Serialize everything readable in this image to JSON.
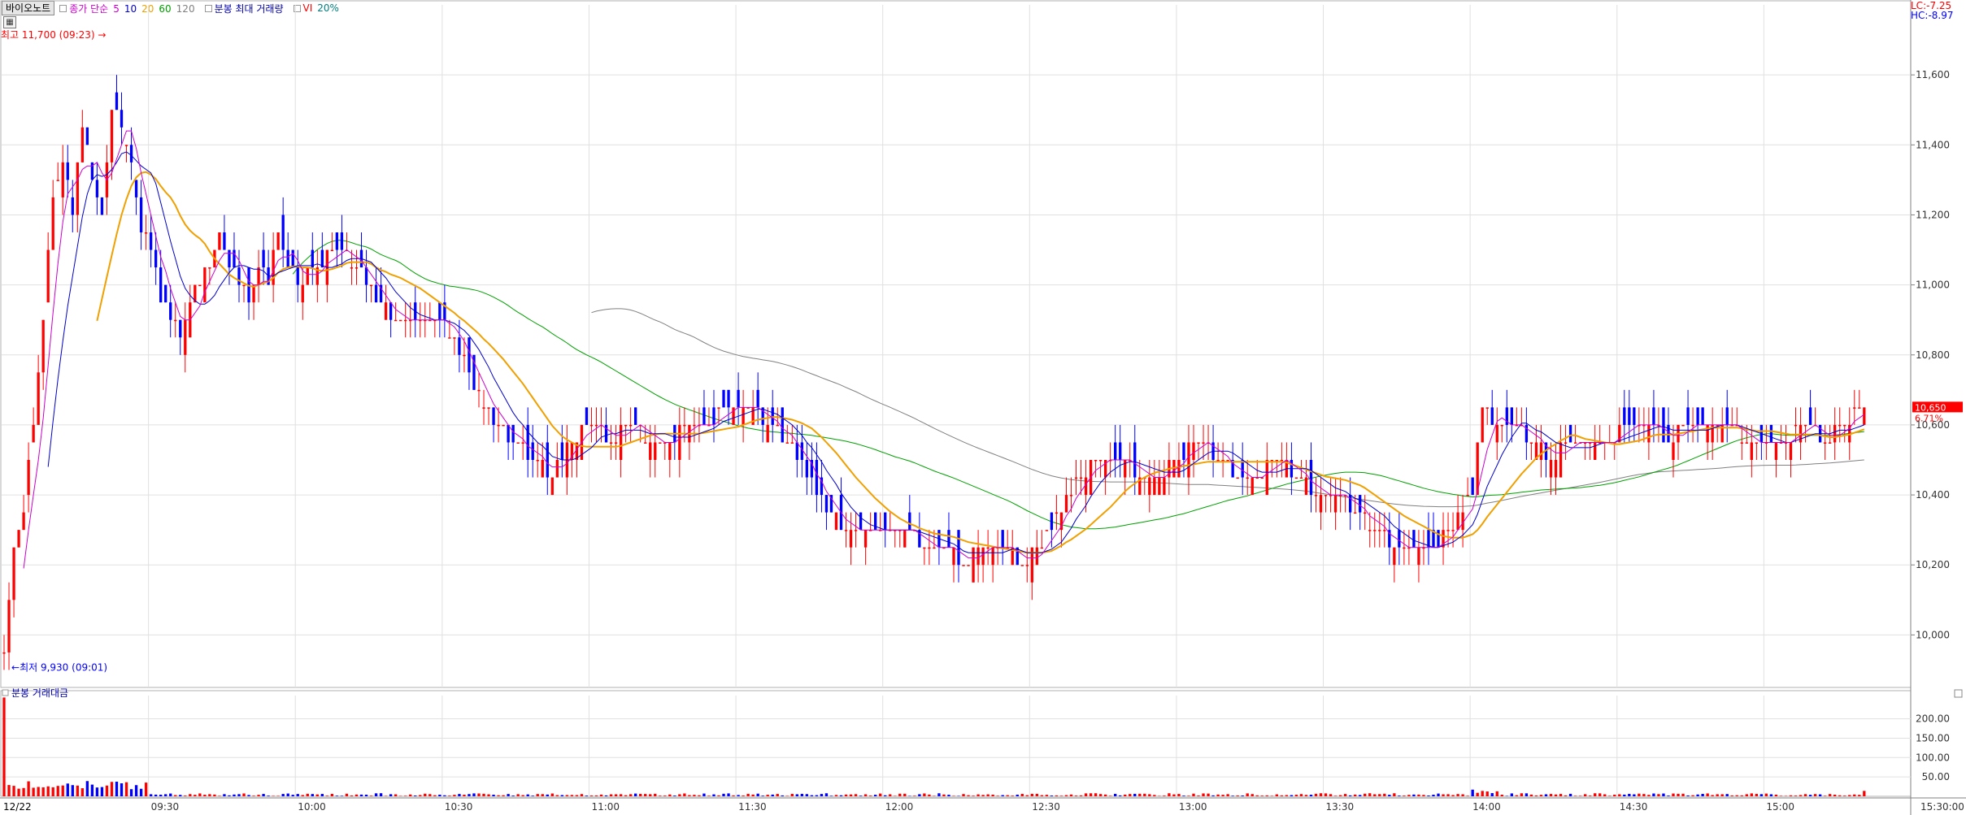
{
  "toolbar": {
    "stock_name": "바이오노트",
    "ma_legend": [
      {
        "label": "종가 단순",
        "color": "#cc00cc"
      },
      {
        "label": "5",
        "color": "#cc00cc"
      },
      {
        "label": "10",
        "color": "#0000cc"
      },
      {
        "label": "20",
        "color": "#f0a000"
      },
      {
        "label": "60",
        "color": "#00a000"
      },
      {
        "label": "120",
        "color": "#808080"
      }
    ],
    "volume_label": "분봉 최대 거래량",
    "vi_label": "VI",
    "vi_value": "20%"
  },
  "limits": {
    "lc": "LC:-7.25",
    "hc": "HC:-8.97"
  },
  "annotations": {
    "high": "최고 11,700 (09:23)",
    "low": "최저 9,930 (09:01)",
    "current_price": "10,650",
    "current_change": "6.71%"
  },
  "volume_panel": {
    "label": "분봉 거래대금"
  },
  "date_label": "12/22",
  "colors": {
    "up": "#ff0000",
    "down": "#0000ff",
    "ma5": "#cc00cc",
    "ma10": "#0000cc",
    "ma20": "#f0a000",
    "ma60": "#00a000",
    "ma120": "#808080",
    "grid": "#e0e0e0"
  },
  "chart_data": {
    "type": "candlestick",
    "interval": "1 minute",
    "price_axis": {
      "ticks": [
        10000,
        10200,
        10400,
        10600,
        10800,
        11000,
        11200,
        11400,
        11600
      ],
      "ylim": [
        9850,
        11800
      ]
    },
    "volume_axis": {
      "ticks": [
        50,
        100,
        150,
        200
      ],
      "ylim": [
        0,
        260
      ]
    },
    "x_ticks": [
      "09:30",
      "10:00",
      "10:30",
      "11:00",
      "11:30",
      "12:00",
      "12:30",
      "13:00",
      "13:30",
      "14:00",
      "14:30",
      "15:00",
      "15:30:00"
    ],
    "session": [
      "09:00",
      "15:30"
    ],
    "close_anchors": [
      [
        "09:00",
        9950
      ],
      [
        "09:02",
        10250
      ],
      [
        "09:04",
        10350
      ],
      [
        "09:06",
        10600
      ],
      [
        "09:08",
        10900
      ],
      [
        "09:10",
        11250
      ],
      [
        "09:12",
        11350
      ],
      [
        "09:14",
        11200
      ],
      [
        "09:16",
        11450
      ],
      [
        "09:18",
        11300
      ],
      [
        "09:20",
        11200
      ],
      [
        "09:22",
        11500
      ],
      [
        "09:24",
        11450
      ],
      [
        "09:26",
        11350
      ],
      [
        "09:28",
        11150
      ],
      [
        "09:30",
        11100
      ],
      [
        "09:32",
        10950
      ],
      [
        "09:34",
        10900
      ],
      [
        "09:36",
        10850
      ],
      [
        "09:38",
        10950
      ],
      [
        "09:40",
        11000
      ],
      [
        "09:42",
        11050
      ],
      [
        "09:44",
        11150
      ],
      [
        "09:46",
        11050
      ],
      [
        "09:48",
        11000
      ],
      [
        "09:50",
        10950
      ],
      [
        "09:52",
        11050
      ],
      [
        "09:54",
        11000
      ],
      [
        "09:56",
        11150
      ],
      [
        "09:58",
        11050
      ],
      [
        "10:00",
        11000
      ],
      [
        "10:04",
        11050
      ],
      [
        "10:08",
        11100
      ],
      [
        "10:12",
        11050
      ],
      [
        "10:16",
        10950
      ],
      [
        "10:20",
        10900
      ],
      [
        "10:24",
        10900
      ],
      [
        "10:28",
        10900
      ],
      [
        "10:32",
        10850
      ],
      [
        "10:36",
        10700
      ],
      [
        "10:40",
        10600
      ],
      [
        "10:44",
        10550
      ],
      [
        "10:48",
        10500
      ],
      [
        "10:52",
        10450
      ],
      [
        "10:56",
        10550
      ],
      [
        "11:00",
        10600
      ],
      [
        "11:04",
        10550
      ],
      [
        "11:08",
        10600
      ],
      [
        "11:12",
        10550
      ],
      [
        "11:16",
        10550
      ],
      [
        "11:20",
        10600
      ],
      [
        "11:24",
        10600
      ],
      [
        "11:28",
        10650
      ],
      [
        "11:32",
        10650
      ],
      [
        "11:36",
        10600
      ],
      [
        "11:40",
        10550
      ],
      [
        "11:44",
        10450
      ],
      [
        "11:48",
        10350
      ],
      [
        "11:52",
        10300
      ],
      [
        "11:56",
        10300
      ],
      [
        "12:00",
        10300
      ],
      [
        "12:04",
        10300
      ],
      [
        "12:08",
        10250
      ],
      [
        "12:12",
        10250
      ],
      [
        "12:16",
        10200
      ],
      [
        "12:20",
        10250
      ],
      [
        "12:24",
        10250
      ],
      [
        "12:28",
        10200
      ],
      [
        "12:32",
        10250
      ],
      [
        "12:36",
        10350
      ],
      [
        "12:40",
        10450
      ],
      [
        "12:44",
        10500
      ],
      [
        "12:48",
        10500
      ],
      [
        "12:52",
        10450
      ],
      [
        "12:56",
        10450
      ],
      [
        "13:00",
        10500
      ],
      [
        "13:04",
        10550
      ],
      [
        "13:08",
        10500
      ],
      [
        "13:12",
        10450
      ],
      [
        "13:16",
        10450
      ],
      [
        "13:20",
        10500
      ],
      [
        "13:24",
        10450
      ],
      [
        "13:28",
        10400
      ],
      [
        "13:32",
        10400
      ],
      [
        "13:36",
        10350
      ],
      [
        "13:40",
        10300
      ],
      [
        "13:44",
        10250
      ],
      [
        "13:48",
        10250
      ],
      [
        "13:52",
        10250
      ],
      [
        "13:56",
        10300
      ],
      [
        "14:00",
        10400
      ],
      [
        "14:02",
        10650
      ],
      [
        "14:04",
        10600
      ],
      [
        "14:08",
        10600
      ],
      [
        "14:12",
        10550
      ],
      [
        "14:16",
        10500
      ],
      [
        "14:20",
        10550
      ],
      [
        "14:24",
        10550
      ],
      [
        "14:28",
        10550
      ],
      [
        "14:32",
        10600
      ],
      [
        "14:36",
        10600
      ],
      [
        "14:40",
        10550
      ],
      [
        "14:44",
        10600
      ],
      [
        "14:48",
        10600
      ],
      [
        "14:52",
        10600
      ],
      [
        "14:56",
        10550
      ],
      [
        "15:00",
        10550
      ],
      [
        "15:04",
        10550
      ],
      [
        "15:08",
        10600
      ],
      [
        "15:12",
        10550
      ],
      [
        "15:16",
        10600
      ],
      [
        "15:20",
        10650
      ]
    ],
    "ma120_visible_from": "11:00"
  }
}
